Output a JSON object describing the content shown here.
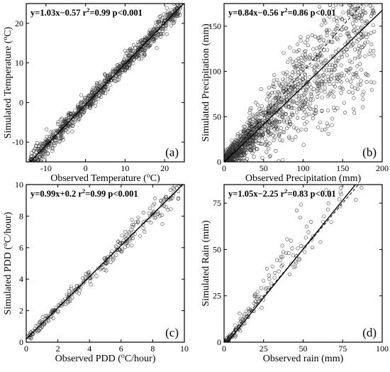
{
  "chart_data": [
    {
      "type": "scatter",
      "panel": "(a)",
      "equation": "y=1.03x−0.57",
      "r2": "r²=0.99",
      "p": "p<0.001",
      "xlabel": "Observed Temperature (°C)",
      "ylabel": "Simulated Temperature (°C)",
      "xlim": [
        -15,
        25
      ],
      "ylim": [
        -15,
        25
      ],
      "xticks": [
        -10,
        0,
        10,
        20
      ],
      "yticks": [
        -10,
        0,
        10,
        20
      ],
      "fit": {
        "slope": 1.03,
        "intercept": -0.57
      },
      "one_to_one": false,
      "points": {
        "count": 900,
        "x_range": [
          -14,
          24
        ],
        "spread": 1.2
      }
    },
    {
      "type": "scatter",
      "panel": "(b)",
      "equation": "y=0.84x−0.56",
      "r2": "r²=0.86",
      "p": "p<0.01",
      "xlabel": "Observed Precipitation (mm)",
      "ylabel": "Simulated Precipitation (mm)",
      "xlim": [
        0,
        200
      ],
      "ylim": [
        0,
        175
      ],
      "xticks": [
        0,
        50,
        100,
        150,
        200
      ],
      "yticks": [
        0,
        50,
        100,
        150
      ],
      "fit": {
        "slope": 0.84,
        "intercept": -0.56
      },
      "one_to_one": true,
      "points": {
        "count": 1400,
        "x_range": [
          0,
          190
        ],
        "spread": 18
      }
    },
    {
      "type": "scatter",
      "panel": "(c)",
      "equation": "y=0.99x+0.2",
      "r2": "r²=0.99",
      "p": "p<0.001",
      "xlabel": "Observed PDD (°C/hour)",
      "ylabel": "Simulated PDD (°C/hour)",
      "xlim": [
        0,
        10
      ],
      "ylim": [
        0,
        10
      ],
      "xticks": [
        0,
        2,
        4,
        6,
        8,
        10
      ],
      "yticks": [
        0,
        2,
        4,
        6,
        8,
        10
      ],
      "fit": {
        "slope": 0.99,
        "intercept": 0.2
      },
      "one_to_one": false,
      "points": {
        "count": 260,
        "x_range": [
          0,
          9.8
        ],
        "spread": 0.3
      }
    },
    {
      "type": "scatter",
      "panel": "(d)",
      "equation": "y=1.05x−2.25",
      "r2": "r²=0.83",
      "p": "p<0.01",
      "xlabel": "Observed rain (mm)",
      "ylabel": "Simulated Rain (mm)",
      "xlim": [
        0,
        100
      ],
      "ylim": [
        0,
        85
      ],
      "xticks": [
        0,
        25,
        50,
        75,
        100
      ],
      "yticks": [
        0,
        25,
        50,
        75
      ],
      "fit": {
        "slope": 1.05,
        "intercept": -2.25
      },
      "one_to_one": true,
      "points": {
        "count": 200,
        "x_range": [
          0,
          90
        ],
        "spread": 10
      }
    }
  ]
}
